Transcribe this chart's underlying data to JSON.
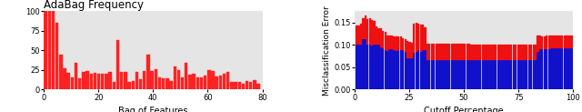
{
  "left_title": "AdaBag Frequency",
  "left_xlabel": "Bag of Features",
  "left_ylabel": "",
  "left_xlim": [
    0,
    80
  ],
  "left_ylim": [
    0,
    100
  ],
  "left_yticks": [
    0,
    25,
    50,
    75,
    100
  ],
  "left_xticks": [
    0,
    20,
    40,
    60,
    80
  ],
  "left_bar_color": "#FF2222",
  "left_bar_values": [
    100,
    100,
    100,
    85,
    45,
    27,
    21,
    15,
    34,
    14,
    22,
    24,
    20,
    21,
    20,
    20,
    20,
    22,
    10,
    63,
    22,
    22,
    10,
    11,
    22,
    13,
    24,
    45,
    24,
    26,
    16,
    14,
    14,
    11,
    30,
    25,
    15,
    34,
    19,
    20,
    16,
    15,
    18,
    25,
    24,
    17,
    18,
    20,
    22,
    10,
    10,
    10,
    8,
    11,
    10,
    12,
    7
  ],
  "right_xlabel": "Cutoff Percentage",
  "right_ylabel": "Misclassification Error",
  "right_xlim": [
    0,
    100
  ],
  "right_ylim": [
    0.0,
    0.175
  ],
  "right_yticks": [
    0.0,
    0.05,
    0.1,
    0.15
  ],
  "right_xticks": [
    0,
    25,
    50,
    75,
    100
  ],
  "right_bar_color_blue": "#1111CC",
  "right_bar_color_red": "#EE1111",
  "background_color": "#E5E5E5",
  "title_fontsize": 8.5,
  "axis_fontsize": 7
}
